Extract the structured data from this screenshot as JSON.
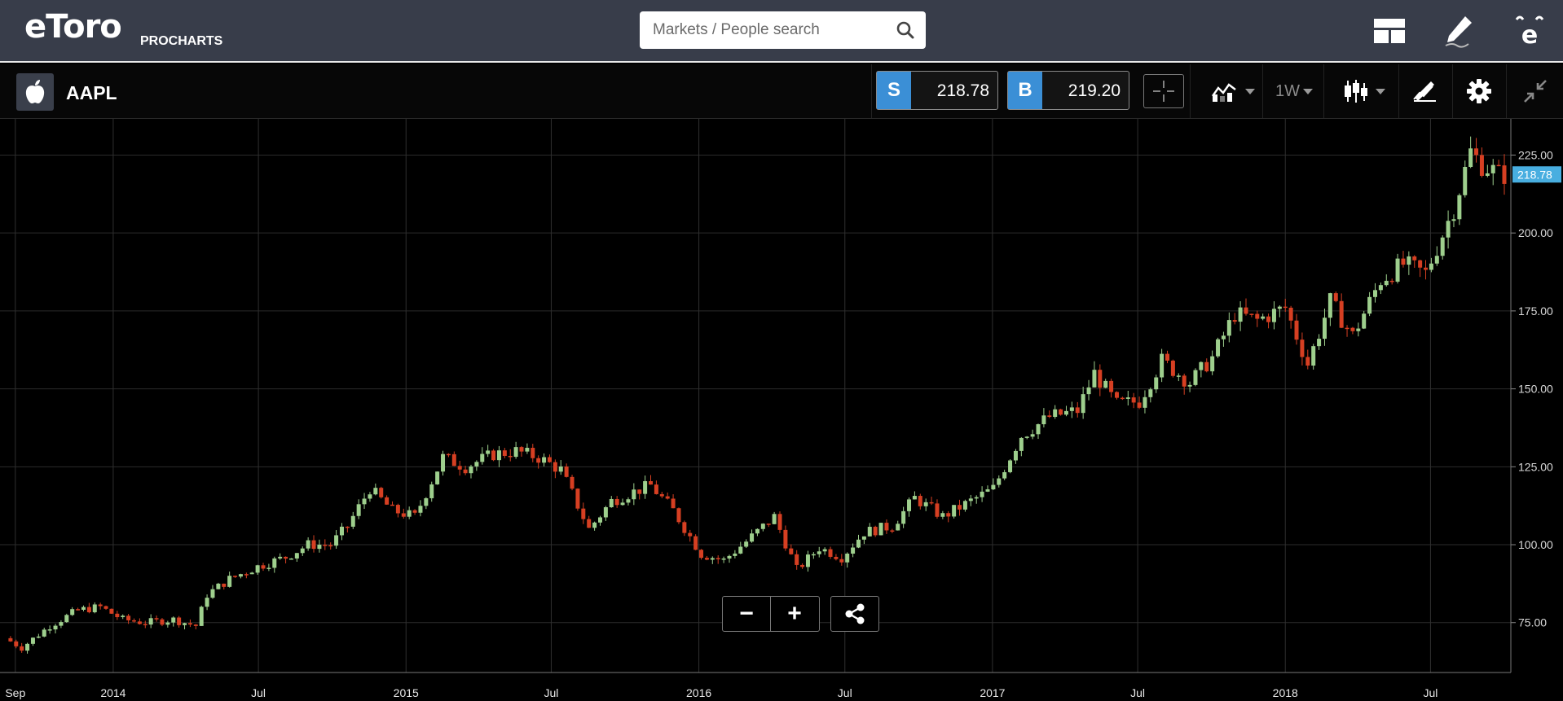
{
  "header": {
    "logo_text": "eToro",
    "product_label": "PROCHARTS",
    "search": {
      "placeholder": "Markets / People search"
    },
    "icons": [
      "layout-icon",
      "pencil-icon",
      "etoro-e-icon"
    ]
  },
  "instrument": {
    "symbol": "AAPL",
    "icon": "apple-icon",
    "sell": {
      "label": "S",
      "price": "218.78"
    },
    "buy": {
      "label": "B",
      "price": "219.20"
    }
  },
  "toolbar": {
    "interval": "1W",
    "icons": [
      "crosshair-icon",
      "compare-icon",
      "candlestick-icon",
      "drawing-tools-icon",
      "gear-icon",
      "collapse-icon"
    ]
  },
  "colors": {
    "up": "#9ecf8d",
    "down": "#d63f22",
    "accent": "#3b8fd6",
    "current_price": "#48aee0"
  },
  "controls": {
    "zoom_out_label": "−",
    "zoom_in_label": "+"
  },
  "chart_data": {
    "type": "candlestick",
    "interval": "weekly",
    "x_range": [
      "2013-08-19",
      "2018-10-01"
    ],
    "ylim": [
      59,
      234
    ],
    "y_ticks": [
      "75.00",
      "100.00",
      "125.00",
      "150.00",
      "175.00",
      "200.00",
      "225.00"
    ],
    "x_ticks": [
      {
        "label": "Sep",
        "date": "2013-09-01"
      },
      {
        "label": "2014",
        "date": "2014-01-01"
      },
      {
        "label": "Jul",
        "date": "2014-07-01"
      },
      {
        "label": "2015",
        "date": "2015-01-01"
      },
      {
        "label": "Jul",
        "date": "2015-07-01"
      },
      {
        "label": "2016",
        "date": "2016-01-01"
      },
      {
        "label": "Jul",
        "date": "2016-07-01"
      },
      {
        "label": "2017",
        "date": "2017-01-01"
      },
      {
        "label": "Jul",
        "date": "2017-07-01"
      },
      {
        "label": "2018",
        "date": "2018-01-01"
      },
      {
        "label": "Jul",
        "date": "2018-07-01"
      }
    ],
    "current_price": "218.78",
    "grid": true,
    "close_path": [
      [
        "2013-08-26",
        70
      ],
      [
        "2013-09-16",
        67
      ],
      [
        "2013-10-21",
        74
      ],
      [
        "2013-11-25",
        79
      ],
      [
        "2013-12-23",
        80
      ],
      [
        "2014-01-20",
        76
      ],
      [
        "2014-02-17",
        75
      ],
      [
        "2014-03-24",
        76
      ],
      [
        "2014-04-21",
        74
      ],
      [
        "2014-05-05",
        84
      ],
      [
        "2014-06-02",
        89
      ],
      [
        "2014-07-07",
        93
      ],
      [
        "2014-08-11",
        96
      ],
      [
        "2014-09-08",
        100
      ],
      [
        "2014-10-06",
        100
      ],
      [
        "2014-10-27",
        106
      ],
      [
        "2014-11-24",
        118
      ],
      [
        "2014-12-22",
        111
      ],
      [
        "2015-01-19",
        109
      ],
      [
        "2015-02-23",
        128
      ],
      [
        "2015-03-23",
        125
      ],
      [
        "2015-04-27",
        129
      ],
      [
        "2015-05-25",
        130
      ],
      [
        "2015-06-22",
        128
      ],
      [
        "2015-07-20",
        124
      ],
      [
        "2015-08-24",
        105
      ],
      [
        "2015-09-21",
        114
      ],
      [
        "2015-10-19",
        117
      ],
      [
        "2015-11-09",
        119
      ],
      [
        "2015-12-07",
        111
      ],
      [
        "2016-01-11",
        97
      ],
      [
        "2016-02-08",
        95
      ],
      [
        "2016-03-07",
        101
      ],
      [
        "2016-04-11",
        109
      ],
      [
        "2016-05-09",
        92
      ],
      [
        "2016-06-06",
        99
      ],
      [
        "2016-07-04",
        96
      ],
      [
        "2016-08-01",
        104
      ],
      [
        "2016-09-05",
        106
      ],
      [
        "2016-10-03",
        115
      ],
      [
        "2016-11-07",
        109
      ],
      [
        "2016-12-05",
        113
      ],
      [
        "2017-01-09",
        118
      ],
      [
        "2017-02-13",
        135
      ],
      [
        "2017-03-20",
        141
      ],
      [
        "2017-04-24",
        143
      ],
      [
        "2017-05-15",
        155
      ],
      [
        "2017-06-12",
        145
      ],
      [
        "2017-07-10",
        146
      ],
      [
        "2017-08-07",
        159
      ],
      [
        "2017-09-11",
        152
      ],
      [
        "2017-10-09",
        160
      ],
      [
        "2017-11-06",
        174
      ],
      [
        "2017-12-04",
        172
      ],
      [
        "2018-01-08",
        176
      ],
      [
        "2018-02-05",
        158
      ],
      [
        "2018-03-05",
        178
      ],
      [
        "2018-04-02",
        167
      ],
      [
        "2018-05-07",
        185
      ],
      [
        "2018-06-04",
        190
      ],
      [
        "2018-07-02",
        187
      ],
      [
        "2018-08-06",
        208
      ],
      [
        "2018-08-27",
        226
      ],
      [
        "2018-09-10",
        222
      ],
      [
        "2018-09-24",
        220
      ],
      [
        "2018-10-01",
        218.78
      ]
    ]
  }
}
